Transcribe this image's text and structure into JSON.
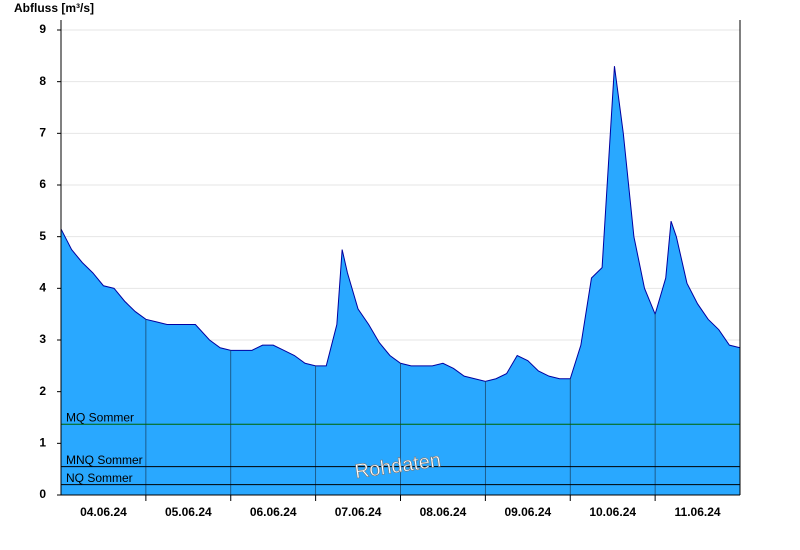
{
  "chart_data": {
    "type": "area",
    "title": "Abfluss [m³/s]",
    "watermark": "Rohdaten",
    "color": "#29a8ff",
    "line_color": "#0000a0",
    "x": [
      0,
      3,
      6,
      9,
      12,
      15,
      18,
      21,
      24,
      27,
      30,
      33,
      36,
      38,
      42,
      45,
      48,
      51,
      54,
      57,
      60,
      63,
      66,
      69,
      72,
      75,
      78,
      79.5,
      81,
      84,
      87,
      90,
      93,
      96,
      99,
      102,
      105,
      108,
      111,
      114,
      117,
      120,
      123,
      126,
      129,
      132,
      135,
      138,
      141,
      144,
      147,
      150,
      153,
      156.5,
      159,
      162,
      165,
      168,
      171,
      172.5,
      174,
      177,
      180,
      183,
      186,
      189,
      192
    ],
    "values": [
      5.15,
      4.75,
      4.5,
      4.3,
      4.05,
      4.0,
      3.75,
      3.55,
      3.4,
      3.35,
      3.3,
      3.3,
      3.3,
      3.3,
      3.0,
      2.85,
      2.8,
      2.8,
      2.8,
      2.9,
      2.9,
      2.8,
      2.7,
      2.55,
      2.5,
      2.5,
      3.3,
      4.75,
      4.3,
      3.6,
      3.3,
      2.95,
      2.7,
      2.55,
      2.5,
      2.5,
      2.5,
      2.55,
      2.45,
      2.3,
      2.25,
      2.2,
      2.25,
      2.35,
      2.7,
      2.6,
      2.4,
      2.3,
      2.25,
      2.25,
      2.9,
      4.2,
      4.4,
      8.3,
      7.0,
      5.0,
      4.0,
      3.5,
      4.2,
      5.3,
      5.0,
      4.1,
      3.7,
      3.4,
      3.2,
      2.9,
      2.85
    ],
    "xlim": [
      0,
      192
    ],
    "xticks": [
      {
        "value": 12,
        "label": "04.06.24"
      },
      {
        "value": 36,
        "label": "05.06.24"
      },
      {
        "value": 60,
        "label": "06.06.24"
      },
      {
        "value": 84,
        "label": "07.06.24"
      },
      {
        "value": 108,
        "label": "08.06.24"
      },
      {
        "value": 132,
        "label": "09.06.24"
      },
      {
        "value": 156,
        "label": "10.06.24"
      },
      {
        "value": 180,
        "label": "11.06.24"
      }
    ],
    "xgrid": [
      24,
      48,
      72,
      96,
      120,
      144,
      168
    ],
    "ylim": [
      0,
      9
    ],
    "yticks": [
      0,
      1,
      2,
      3,
      4,
      5,
      6,
      7,
      8,
      9
    ],
    "grid": true,
    "reference_lines": [
      {
        "label": "MQ Sommer",
        "value": 1.37,
        "color": "#006400"
      },
      {
        "label": "MNQ Sommer",
        "value": 0.55,
        "color": "#000000"
      },
      {
        "label": "NQ Sommer",
        "value": 0.2,
        "color": "#000000"
      }
    ]
  }
}
